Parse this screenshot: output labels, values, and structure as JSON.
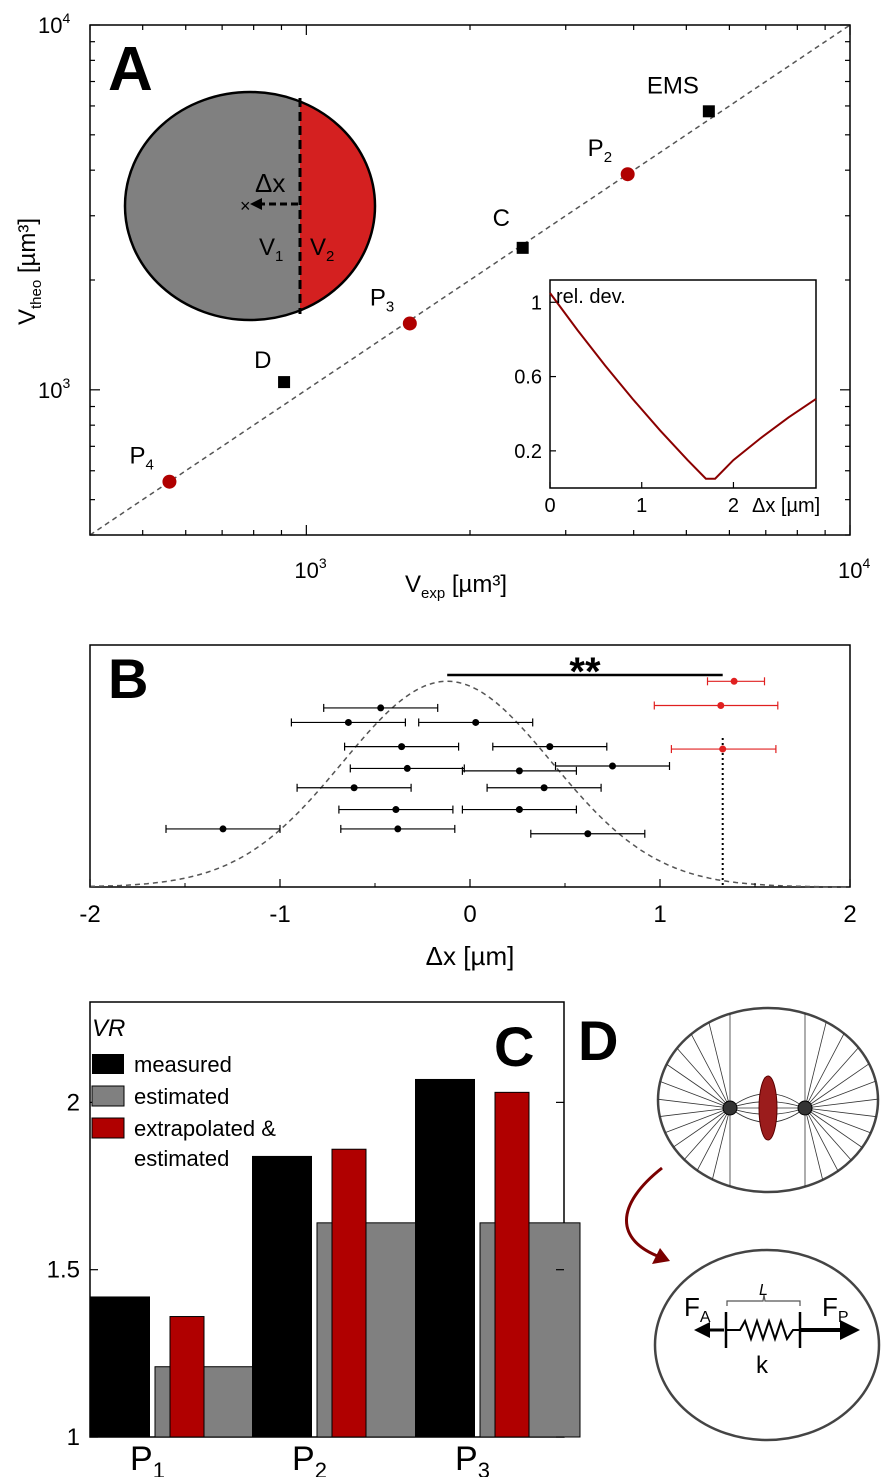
{
  "panels": {
    "A": {
      "letter": "A"
    },
    "B": {
      "letter": "B"
    },
    "C": {
      "letter": "C"
    },
    "D": {
      "letter": "D"
    }
  },
  "colors": {
    "red": "#b00000",
    "red_light": "#e02020",
    "gray": "#808080",
    "black": "#000000",
    "inset_line": "#8b0000"
  },
  "chart_data": [
    {
      "id": "A",
      "type": "scatter",
      "xscale": "log",
      "yscale": "log",
      "xlim": [
        400,
        10000
      ],
      "ylim": [
        400,
        10000
      ],
      "xlabel_main": "V",
      "xlabel_sub": "exp",
      "xlabel_unit": " [µm³]",
      "ylabel_main": "V",
      "ylabel_sub": "theo",
      "ylabel_unit": " [µm³]",
      "xticks": [
        {
          "value": 1000,
          "base": "10",
          "exp": "3"
        },
        {
          "value": 10000,
          "base": "10",
          "exp": "4"
        }
      ],
      "yticks": [
        {
          "value": 1000,
          "base": "10",
          "exp": "3"
        },
        {
          "value": 10000,
          "base": "10",
          "exp": "4"
        }
      ],
      "diagonal": true,
      "points": [
        {
          "label": "EMS",
          "sub": "",
          "x": 5500,
          "y": 5800,
          "marker": "square",
          "color": "#000000"
        },
        {
          "label": "P",
          "sub": "2",
          "x": 3900,
          "y": 3900,
          "marker": "circle",
          "color": "#b00000"
        },
        {
          "label": "C",
          "sub": "",
          "x": 2500,
          "y": 2450,
          "marker": "square",
          "color": "#000000"
        },
        {
          "label": "P",
          "sub": "3",
          "x": 1550,
          "y": 1520,
          "marker": "circle",
          "color": "#b00000"
        },
        {
          "label": "D",
          "sub": "",
          "x": 910,
          "y": 1050,
          "marker": "square",
          "color": "#000000"
        },
        {
          "label": "P",
          "sub": "4",
          "x": 560,
          "y": 560,
          "marker": "circle",
          "color": "#b00000"
        }
      ],
      "diagram": {
        "delta_label": "Δx",
        "v1_main": "V",
        "v1_sub": "1",
        "v2_main": "V",
        "v2_sub": "2"
      },
      "inset": {
        "type": "line",
        "ylabel": "rel. dev.",
        "xlabel": "Δx [µm]",
        "xlim": [
          0,
          2.9
        ],
        "ylim": [
          0,
          1.12
        ],
        "xticks": [
          0,
          1,
          2
        ],
        "yticks": [
          0.2,
          0.6,
          1
        ],
        "x": [
          0,
          0.3,
          0.6,
          0.9,
          1.2,
          1.5,
          1.7,
          1.8,
          2.0,
          2.3,
          2.6,
          2.9
        ],
        "y": [
          1.05,
          0.85,
          0.66,
          0.48,
          0.31,
          0.15,
          0.05,
          0.05,
          0.15,
          0.27,
          0.38,
          0.48
        ]
      }
    },
    {
      "id": "B",
      "type": "scatter",
      "xlim": [
        -2,
        2
      ],
      "xticks": [
        -2,
        -1,
        0,
        1,
        2
      ],
      "xlabel": "Δx [µm]",
      "significance": "**",
      "significance_line": [
        -0.12,
        1.33
      ],
      "vertical_line_x": 1.33,
      "gaussian": {
        "mean": -0.12,
        "sd": 0.55
      },
      "points_black": [
        {
          "x": -0.47,
          "y": 0.74,
          "xerr": [
            0.6,
            0.2
          ]
        },
        {
          "x": -0.64,
          "y": 0.68,
          "xerr": [
            0.95,
            0.35
          ]
        },
        {
          "x": 0.03,
          "y": 0.68,
          "xerr": [
            0.15,
            0.22
          ]
        },
        {
          "x": -0.36,
          "y": 0.58,
          "xerr": [
            0.55,
            0.04
          ]
        },
        {
          "x": 0.42,
          "y": 0.58,
          "xerr": [
            0.23,
            0.62
          ]
        },
        {
          "x": -0.33,
          "y": 0.49,
          "xerr": [
            0.56,
            0.0
          ]
        },
        {
          "x": 0.26,
          "y": 0.48,
          "xerr": [
            0.07,
            0.46
          ]
        },
        {
          "x": 0.75,
          "y": 0.5,
          "xerr": [
            0.55,
            0.95
          ]
        },
        {
          "x": -0.61,
          "y": 0.41,
          "xerr": [
            0.99,
            0.37
          ]
        },
        {
          "x": 0.39,
          "y": 0.41,
          "xerr": [
            0.18,
            0.61
          ]
        },
        {
          "x": -0.39,
          "y": 0.32,
          "xerr": [
            0.61,
            0.06
          ]
        },
        {
          "x": 0.26,
          "y": 0.32,
          "xerr": [
            0.06,
            0.58
          ]
        },
        {
          "x": -1.3,
          "y": 0.24,
          "xerr": [
            1.6,
            1.0
          ]
        },
        {
          "x": -0.38,
          "y": 0.24,
          "xerr": [
            0.64,
            0.0
          ]
        },
        {
          "x": 0.62,
          "y": 0.22,
          "xerr": [
            0.36,
            0.87
          ]
        }
      ],
      "points_red": [
        {
          "x": 1.39,
          "y": 0.85,
          "xerr": [
            1.25,
            1.55
          ]
        },
        {
          "x": 1.32,
          "y": 0.75,
          "xerr": [
            0.97,
            1.62
          ]
        },
        {
          "x": 1.33,
          "y": 0.57,
          "xerr": [
            1.06,
            1.61
          ]
        }
      ]
    },
    {
      "id": "C",
      "type": "bar",
      "ylim": [
        1,
        2.3
      ],
      "yticks": [
        1,
        1.5,
        2
      ],
      "ylabel": "VR",
      "categories": [
        {
          "main": "P",
          "sub": "1"
        },
        {
          "main": "P",
          "sub": "2"
        },
        {
          "main": "P",
          "sub": "3"
        }
      ],
      "series": [
        {
          "name": "measured",
          "color": "#000000",
          "values": [
            1.42,
            1.84,
            2.07
          ]
        },
        {
          "name": "estimated",
          "color": "#808080",
          "values": [
            1.21,
            1.64,
            1.64
          ]
        },
        {
          "name": "extrapolated &",
          "name_line2": "estimated",
          "color": "#b00000",
          "values": [
            1.36,
            1.86,
            2.03
          ]
        }
      ]
    }
  ],
  "diagram_D": {
    "force_a_main": "F",
    "force_a_sub": "A",
    "force_p_main": "F",
    "force_p_sub": "P",
    "length_label": "L",
    "spring_label": "k"
  }
}
